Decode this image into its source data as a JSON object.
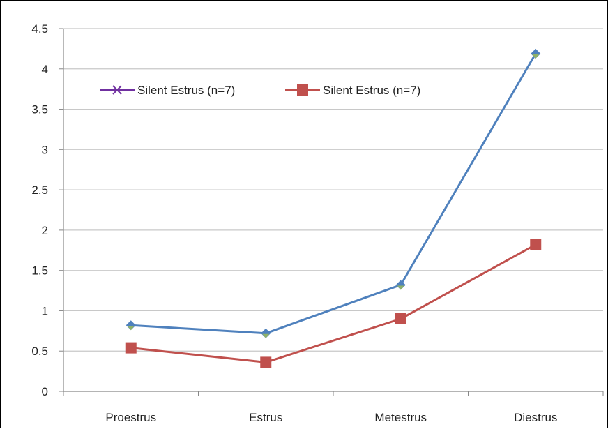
{
  "chart_data": {
    "type": "line",
    "categories": [
      "Proestrus",
      "Estrus",
      "Metestrus",
      "Diestrus"
    ],
    "series": [
      {
        "name": "Silent Estrus (n=7)",
        "values": [
          0.82,
          0.72,
          1.32,
          4.19
        ],
        "color": "#4F81BD",
        "marker": "diamond",
        "legend_color": "#7030A0"
      },
      {
        "name": "Silent Estrus (n=7)",
        "values": [
          0.54,
          0.36,
          0.9,
          1.82
        ],
        "color": "#C0504D",
        "marker": "square"
      }
    ],
    "y_ticks": [
      "0",
      "0.5",
      "1",
      "1.5",
      "2",
      "2.5",
      "3",
      "3.5",
      "4",
      "4.5"
    ],
    "ylim": [
      0,
      4.5
    ],
    "grid": true,
    "legend": "top-left inside plot",
    "title": "",
    "xlabel": "",
    "ylabel": ""
  }
}
